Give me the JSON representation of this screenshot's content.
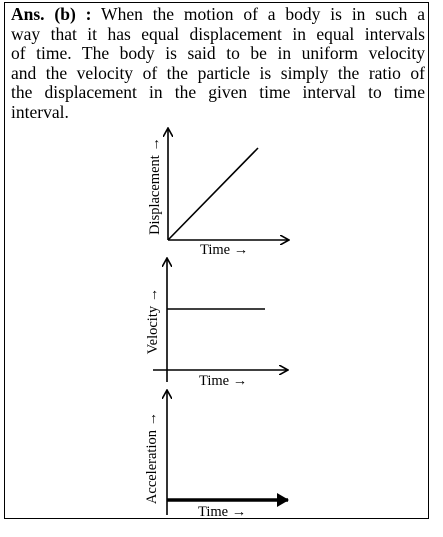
{
  "answer": {
    "label": "Ans. (b) :",
    "lines": [
      "When the motion of a body is in such a",
      "way that it has equal displacement in equal intervals",
      "of time. The body is said to be in uniform velocity",
      "and the velocity of the particle is simply the ratio of",
      "the displacement in the given time interval to time",
      "interval."
    ]
  },
  "graphs": [
    {
      "y_label": "Displacement →",
      "x_label": "Time →"
    },
    {
      "y_label": "Velocity →",
      "x_label": "Time →"
    },
    {
      "y_label": "Acceleration →",
      "x_label": "Time →"
    }
  ]
}
